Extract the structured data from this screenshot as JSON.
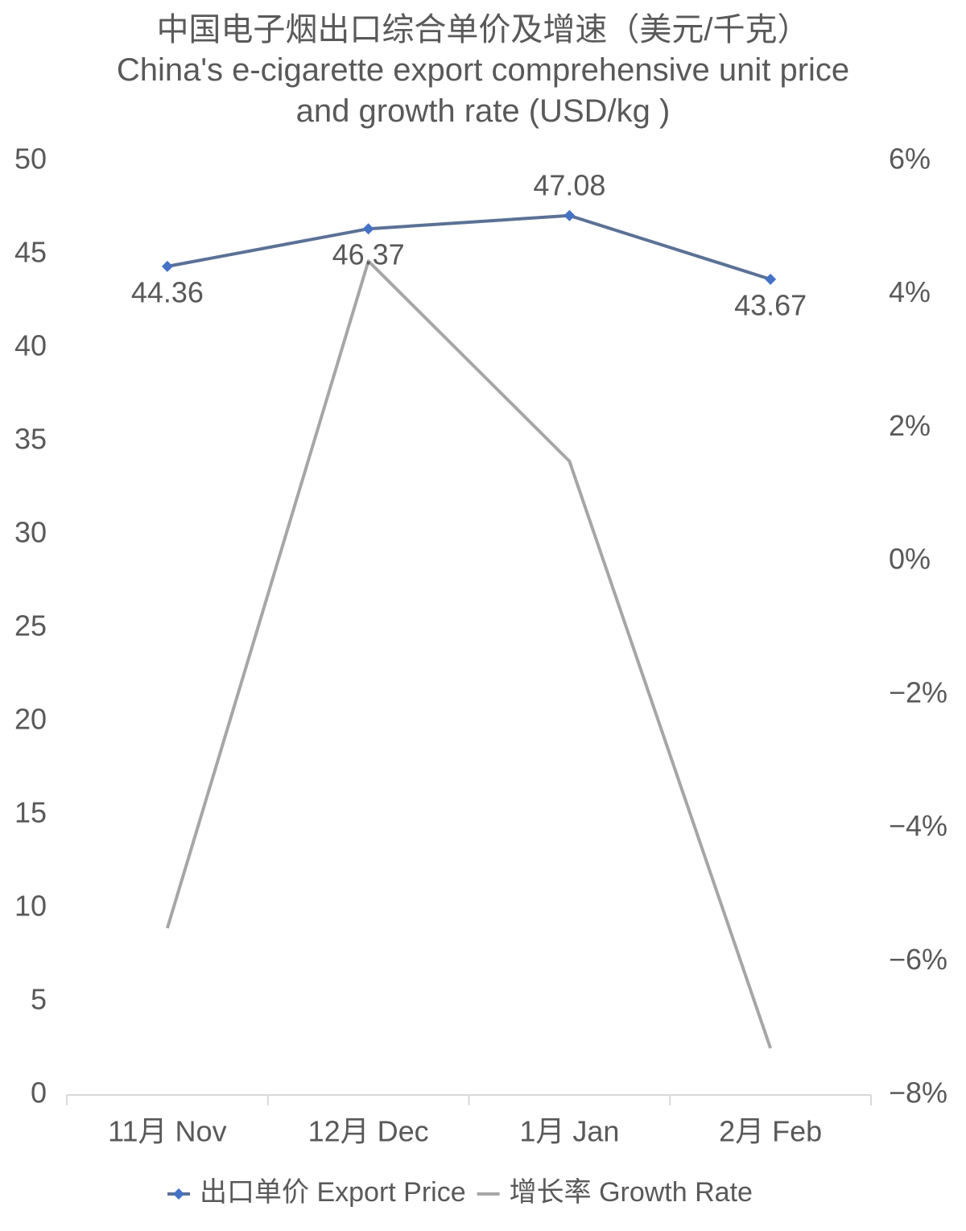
{
  "chart_data": {
    "type": "line",
    "title": "中国电子烟出口综合单价及增速（美元/千克）",
    "subtitle": "China's e-cigarette export comprehensive unit price and growth rate (USD/kg )",
    "categories": [
      "11月 Nov",
      "12月 Dec",
      "1月 Jan",
      "2月 Feb"
    ],
    "series": [
      {
        "name": "出口单价 Export Price",
        "color": "#5b7196",
        "marker_color": "#4472c4",
        "values": [
          44.36,
          46.37,
          47.08,
          43.67
        ]
      },
      {
        "name": "增长率 Growth Rate",
        "color": "#a6a6a6",
        "axis": "y2",
        "values": [
          -5.5,
          4.5,
          1.5,
          -7.3
        ]
      }
    ],
    "ylim": [
      0,
      50
    ],
    "yticks": [
      0,
      5,
      10,
      15,
      20,
      25,
      30,
      35,
      40,
      45,
      50
    ],
    "y2lim": [
      -8,
      6
    ],
    "y2ticks": [
      {
        "value": -8,
        "label": "−8%"
      },
      {
        "value": -6,
        "label": "−6%"
      },
      {
        "value": -4,
        "label": "−4%"
      },
      {
        "value": -2,
        "label": "−2%"
      },
      {
        "value": 0,
        "label": "0%"
      },
      {
        "value": 2,
        "label": "2%"
      },
      {
        "value": 4,
        "label": "4%"
      },
      {
        "value": 6,
        "label": "6%"
      }
    ],
    "grid": false,
    "legend": "bottom"
  }
}
